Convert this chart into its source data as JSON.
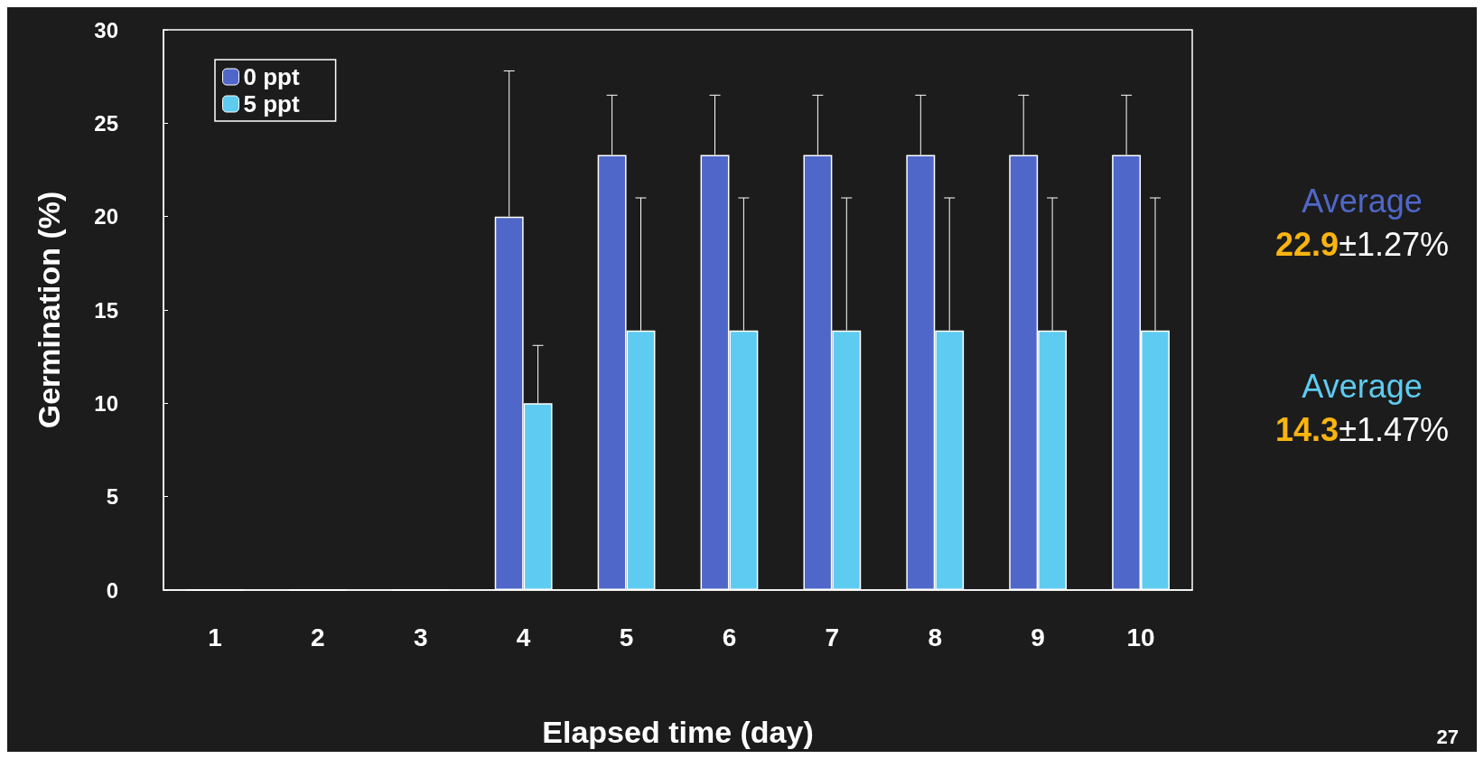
{
  "chart_data": {
    "type": "bar",
    "xlabel": "Elapsed time (day)",
    "ylabel": "Germination (%)",
    "categories": [
      "1",
      "2",
      "3",
      "4",
      "5",
      "6",
      "7",
      "8",
      "9",
      "10"
    ],
    "series": [
      {
        "name": "0 ppt",
        "color": "#4f67c8",
        "values": [
          0,
          0,
          0,
          20,
          23.3,
          23.3,
          23.3,
          23.3,
          23.3,
          23.3
        ],
        "errors": [
          null,
          null,
          null,
          [
            20,
            27.8
          ],
          [
            23.3,
            26.5
          ],
          [
            23.3,
            26.5
          ],
          [
            23.3,
            26.5
          ],
          [
            23.3,
            26.5
          ],
          [
            23.3,
            26.5
          ],
          [
            23.3,
            26.5
          ]
        ]
      },
      {
        "name": "5 ppt",
        "color": "#5ecbf0",
        "values": [
          0,
          0,
          0,
          10,
          13.9,
          13.9,
          13.9,
          13.9,
          13.9,
          13.9
        ],
        "errors": [
          null,
          null,
          null,
          [
            10,
            13.1
          ],
          [
            13.9,
            21
          ],
          [
            13.9,
            21
          ],
          [
            13.9,
            21
          ],
          [
            13.9,
            21
          ],
          [
            13.9,
            21
          ],
          [
            13.9,
            21
          ]
        ]
      }
    ],
    "ylim": [
      0,
      30
    ],
    "yticks": [
      0,
      5,
      10,
      15,
      20,
      25,
      30
    ],
    "grid": false,
    "legend": "top left",
    "annotations": [
      "Average",
      "22.9±1.27%",
      "Average",
      "14.3±1.47%",
      "27"
    ]
  }
}
